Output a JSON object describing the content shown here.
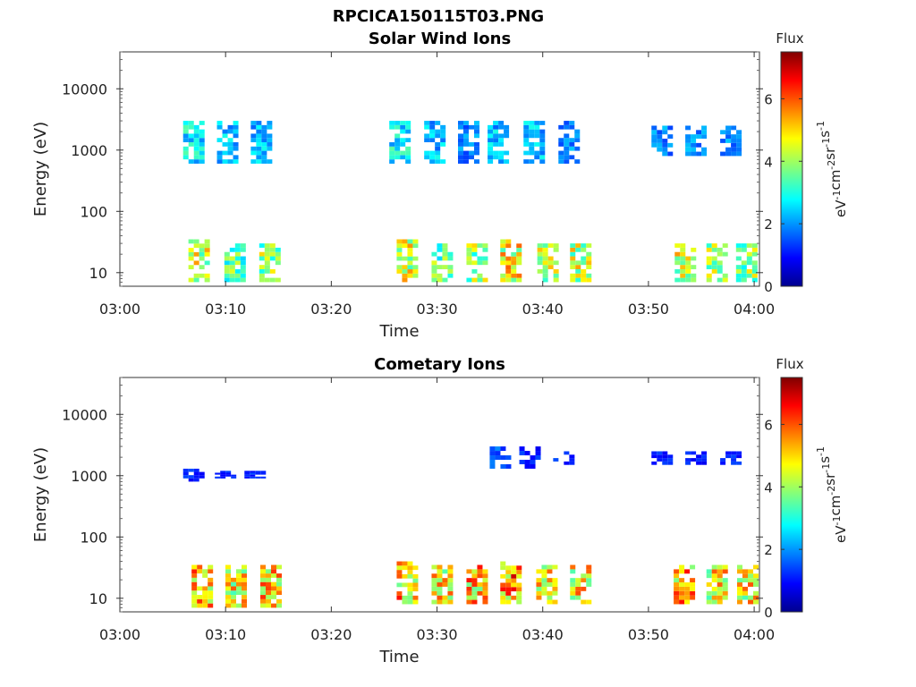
{
  "figure": {
    "title": "RPCICA150115T03.PNG"
  },
  "chart_data": [
    {
      "type": "heatmap",
      "title": "Solar Wind Ions",
      "xlabel": "Time",
      "ylabel": "Energy (eV)",
      "x_ticks": [
        "03:00",
        "03:10",
        "03:20",
        "03:30",
        "03:40",
        "03:50",
        "04:00"
      ],
      "x_range_minutes": [
        0,
        60.5
      ],
      "y_scale": "log",
      "y_ticks": [
        10,
        100,
        1000,
        10000
      ],
      "y_tick_labels": [
        "10",
        "100",
        "1000",
        "10000"
      ],
      "y_range": [
        6,
        40000
      ],
      "colorbar": {
        "label": "Flux",
        "units_label": "eV-1cm-2sr-1s-1",
        "ticks": [
          0,
          2,
          4,
          6
        ],
        "range": [
          0,
          7.5
        ],
        "colormap": "jet"
      },
      "clusters": [
        {
          "t": 7.5,
          "e_min": 7,
          "e_max": 35,
          "flux": 5.5
        },
        {
          "t": 10.9,
          "e_min": 7,
          "e_max": 30,
          "flux": 4.5
        },
        {
          "t": 14.2,
          "e_min": 7,
          "e_max": 30,
          "flux": 5.0
        },
        {
          "t": 27.2,
          "e_min": 7,
          "e_max": 35,
          "flux": 5.5
        },
        {
          "t": 30.5,
          "e_min": 7,
          "e_max": 30,
          "flux": 4.5
        },
        {
          "t": 33.8,
          "e_min": 7,
          "e_max": 30,
          "flux": 5.0
        },
        {
          "t": 37.0,
          "e_min": 7,
          "e_max": 35,
          "flux": 6.0
        },
        {
          "t": 40.5,
          "e_min": 7,
          "e_max": 30,
          "flux": 5.5
        },
        {
          "t": 43.6,
          "e_min": 7,
          "e_max": 30,
          "flux": 5.5
        },
        {
          "t": 53.5,
          "e_min": 7,
          "e_max": 30,
          "flux": 5.5
        },
        {
          "t": 56.5,
          "e_min": 7,
          "e_max": 30,
          "flux": 5.0
        },
        {
          "t": 59.3,
          "e_min": 7,
          "e_max": 30,
          "flux": 5.0
        },
        {
          "t": 7.0,
          "e_min": 600,
          "e_max": 3000,
          "flux": 3.5
        },
        {
          "t": 10.2,
          "e_min": 600,
          "e_max": 3000,
          "flux": 3.0
        },
        {
          "t": 13.4,
          "e_min": 600,
          "e_max": 3000,
          "flux": 3.0
        },
        {
          "t": 26.5,
          "e_min": 600,
          "e_max": 3000,
          "flux": 3.5
        },
        {
          "t": 29.8,
          "e_min": 600,
          "e_max": 3000,
          "flux": 3.0
        },
        {
          "t": 33.0,
          "e_min": 600,
          "e_max": 3000,
          "flux": 2.5
        },
        {
          "t": 35.8,
          "e_min": 600,
          "e_max": 3000,
          "flux": 3.0
        },
        {
          "t": 39.2,
          "e_min": 600,
          "e_max": 3000,
          "flux": 3.0
        },
        {
          "t": 42.5,
          "e_min": 600,
          "e_max": 3000,
          "flux": 2.5
        },
        {
          "t": 51.3,
          "e_min": 800,
          "e_max": 2500,
          "flux": 2.5
        },
        {
          "t": 54.5,
          "e_min": 800,
          "e_max": 2500,
          "flux": 2.5
        },
        {
          "t": 57.8,
          "e_min": 800,
          "e_max": 2500,
          "flux": 2.5
        }
      ]
    },
    {
      "type": "heatmap",
      "title": "Cometary Ions",
      "xlabel": "Time",
      "ylabel": "Energy (eV)",
      "x_ticks": [
        "03:00",
        "03:10",
        "03:20",
        "03:30",
        "03:40",
        "03:50",
        "04:00"
      ],
      "x_range_minutes": [
        0,
        60.5
      ],
      "y_scale": "log",
      "y_ticks": [
        10,
        100,
        1000,
        10000
      ],
      "y_tick_labels": [
        "10",
        "100",
        "1000",
        "10000"
      ],
      "y_range": [
        6,
        40000
      ],
      "colorbar": {
        "label": "Flux",
        "units_label": "eV-1cm-2sr-1s-1",
        "ticks": [
          0,
          2,
          4,
          6
        ],
        "range": [
          0,
          7.5
        ],
        "colormap": "jet"
      },
      "clusters": [
        {
          "t": 7.8,
          "e_min": 7,
          "e_max": 35,
          "flux": 6.5
        },
        {
          "t": 11.0,
          "e_min": 7,
          "e_max": 35,
          "flux": 6.0
        },
        {
          "t": 14.3,
          "e_min": 7,
          "e_max": 35,
          "flux": 6.5
        },
        {
          "t": 27.2,
          "e_min": 8,
          "e_max": 40,
          "flux": 6.5
        },
        {
          "t": 30.5,
          "e_min": 8,
          "e_max": 35,
          "flux": 6.0
        },
        {
          "t": 33.8,
          "e_min": 8,
          "e_max": 35,
          "flux": 6.5
        },
        {
          "t": 37.0,
          "e_min": 8,
          "e_max": 40,
          "flux": 7.0
        },
        {
          "t": 40.4,
          "e_min": 8,
          "e_max": 35,
          "flux": 6.0
        },
        {
          "t": 43.6,
          "e_min": 8,
          "e_max": 35,
          "flux": 6.0
        },
        {
          "t": 53.4,
          "e_min": 8,
          "e_max": 35,
          "flux": 6.5
        },
        {
          "t": 56.5,
          "e_min": 8,
          "e_max": 35,
          "flux": 6.0
        },
        {
          "t": 59.4,
          "e_min": 8,
          "e_max": 35,
          "flux": 6.0
        },
        {
          "t": 7.0,
          "e_min": 800,
          "e_max": 1300,
          "flux": 1.5
        },
        {
          "t": 10.0,
          "e_min": 900,
          "e_max": 1200,
          "flux": 1.5
        },
        {
          "t": 12.8,
          "e_min": 900,
          "e_max": 1200,
          "flux": 1.5
        },
        {
          "t": 36.0,
          "e_min": 1300,
          "e_max": 3000,
          "flux": 2.0
        },
        {
          "t": 38.8,
          "e_min": 1300,
          "e_max": 3000,
          "flux": 1.5
        },
        {
          "t": 42.0,
          "e_min": 1500,
          "e_max": 2500,
          "flux": 1.5
        },
        {
          "t": 51.3,
          "e_min": 1500,
          "e_max": 2500,
          "flux": 1.5
        },
        {
          "t": 54.5,
          "e_min": 1500,
          "e_max": 2500,
          "flux": 1.5
        },
        {
          "t": 57.8,
          "e_min": 1500,
          "e_max": 2500,
          "flux": 1.5
        }
      ]
    }
  ]
}
